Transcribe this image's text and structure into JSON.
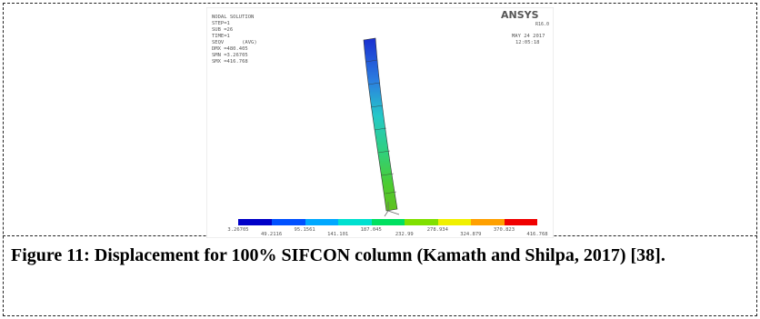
{
  "figure": {
    "plot": {
      "header": [
        "NODAL SOLUTION",
        "STEP=1",
        "SUB =26",
        "TIME=1",
        "SEQV      (AVG)",
        "DMX =480.405",
        "SMN =3.26705",
        "SMX =416.768"
      ],
      "brand": "ANSYS",
      "version": "R16.0",
      "date": "MAY 24 2017",
      "time": "12:05:18",
      "legend": [
        "3.26705",
        "49.2116",
        "95.1561",
        "141.101",
        "187.045",
        "232.99",
        "278.934",
        "324.879",
        "370.823",
        "416.768"
      ]
    },
    "caption": "Figure 11: Displacement for 100% SIFCON column (Kamath and Shilpa, 2017) [38]."
  }
}
